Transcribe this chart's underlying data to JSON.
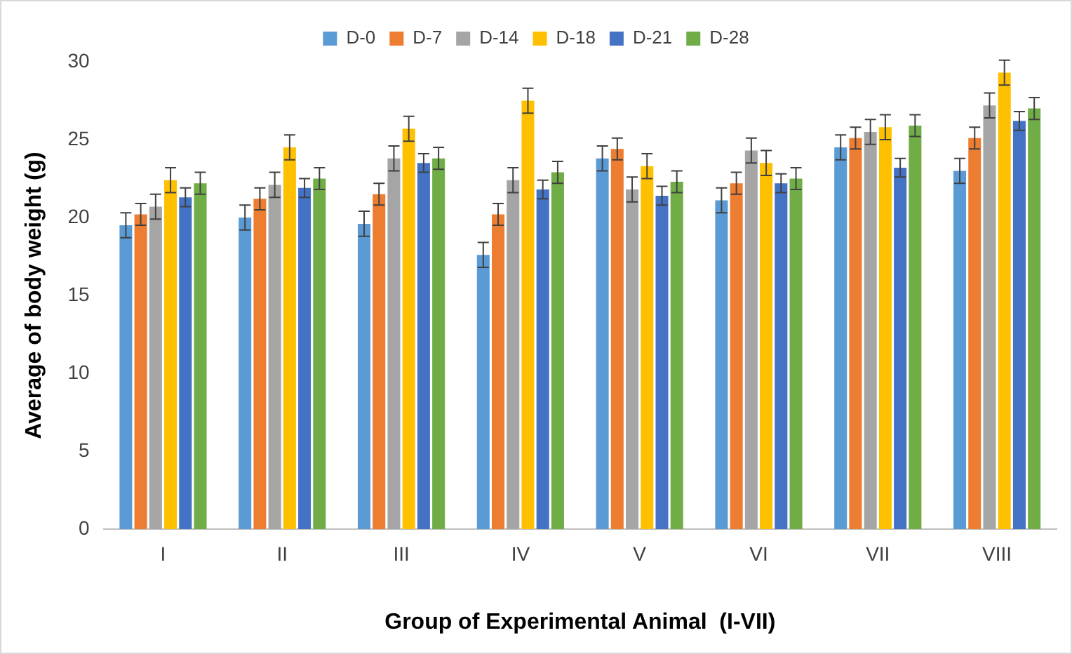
{
  "chart_data": {
    "type": "bar",
    "xlabel": "Group of Experimental Animal  (I-VII)",
    "ylabel": "Average of body weight (g)",
    "categories": [
      "I",
      "II",
      "III",
      "IV",
      "V",
      "VI",
      "VII",
      "VIII"
    ],
    "series": [
      {
        "name": "D-0",
        "color": "#5b9bd5",
        "values": [
          19.5,
          20.0,
          19.6,
          17.6,
          23.8,
          21.1,
          24.5,
          23.0
        ],
        "errors": [
          0.8,
          0.8,
          0.8,
          0.8,
          0.8,
          0.8,
          0.8,
          0.8
        ]
      },
      {
        "name": "D-7",
        "color": "#ed7d31",
        "values": [
          20.2,
          21.2,
          21.5,
          20.2,
          24.4,
          22.2,
          25.1,
          25.1
        ],
        "errors": [
          0.7,
          0.7,
          0.7,
          0.7,
          0.7,
          0.7,
          0.7,
          0.7
        ]
      },
      {
        "name": "D-14",
        "color": "#a5a5a5",
        "values": [
          20.7,
          22.1,
          23.8,
          22.4,
          21.8,
          24.3,
          25.5,
          27.2
        ],
        "errors": [
          0.8,
          0.8,
          0.8,
          0.8,
          0.8,
          0.8,
          0.8,
          0.8
        ]
      },
      {
        "name": "D-18",
        "color": "#ffc000",
        "values": [
          22.4,
          24.5,
          25.7,
          27.5,
          23.3,
          23.5,
          25.8,
          29.3
        ],
        "errors": [
          0.8,
          0.8,
          0.8,
          0.8,
          0.8,
          0.8,
          0.8,
          0.8
        ]
      },
      {
        "name": "D-21",
        "color": "#4472c4",
        "values": [
          21.3,
          21.9,
          23.5,
          21.8,
          21.4,
          22.2,
          23.2,
          26.2
        ],
        "errors": [
          0.6,
          0.6,
          0.6,
          0.6,
          0.6,
          0.6,
          0.6,
          0.6
        ]
      },
      {
        "name": "D-28",
        "color": "#70ad47",
        "values": [
          22.2,
          22.5,
          23.8,
          22.9,
          22.3,
          22.5,
          25.9,
          27.0
        ],
        "errors": [
          0.7,
          0.7,
          0.7,
          0.7,
          0.7,
          0.7,
          0.7,
          0.7
        ]
      }
    ],
    "ylim": [
      0,
      30
    ],
    "yticks": [
      0,
      5,
      10,
      15,
      20,
      25,
      30
    ],
    "grid": false,
    "legend": "top"
  }
}
